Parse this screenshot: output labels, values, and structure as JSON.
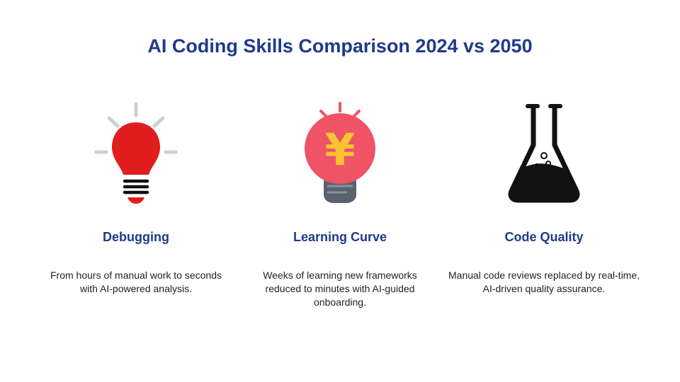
{
  "title": "AI Coding Skills Comparison 2024 vs 2050",
  "cards": [
    {
      "icon": "lightbulb-icon",
      "heading": "Debugging",
      "description": "From hours of manual work to seconds with AI-powered analysis."
    },
    {
      "icon": "yen-lightbulb-icon",
      "heading": "Learning Curve",
      "description": "Weeks of learning new frameworks reduced to minutes with AI-guided onboarding."
    },
    {
      "icon": "flask-icon",
      "heading": "Code Quality",
      "description": "Manual code reviews replaced by real-time, AI-driven quality assurance."
    }
  ],
  "colors": {
    "title": "#1f3a8a",
    "bulb_red": "#e01e1e",
    "bulb_pink": "#ef5365",
    "yen_yellow": "#f7c531",
    "flask_black": "#111111",
    "ray_gray": "#d0d0d0"
  },
  "icon_text": {
    "yen_symbol": "¥"
  }
}
